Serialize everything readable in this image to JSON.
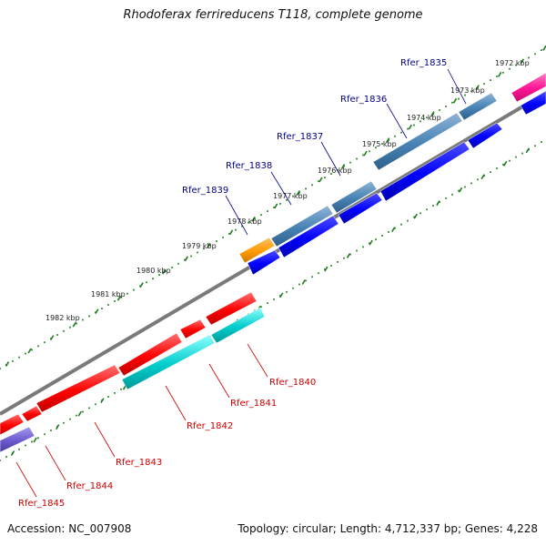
{
  "title": "Rhodoferax ferrireducens T118, complete genome",
  "footer": {
    "accession": "Accession: NC_007908",
    "topology": "Topology: circular; Length: 4,712,337 bp; Genes: 4,228"
  },
  "colors": {
    "background": "#ffffff",
    "backbone": "#7a7a7a",
    "tick_dots": "#2e8b2e",
    "label_forward": "#00008b",
    "label_reverse": "#cc0000",
    "gene_steelblue": "#4682b4",
    "gene_blue": "#0000ff",
    "gene_orange": "#ff9900",
    "gene_pink": "#ff1493",
    "gene_red": "#ff0000",
    "gene_cyan": "#00cccc",
    "gene_slate": "#6a5acd"
  },
  "kbp_labels": [
    {
      "text": "1972 kbp",
      "kbp": 1972
    },
    {
      "text": "1973 kbp",
      "kbp": 1973
    },
    {
      "text": "1974 kbp",
      "kbp": 1974
    },
    {
      "text": "1975 kbp",
      "kbp": 1975
    },
    {
      "text": "1976 kbp",
      "kbp": 1976
    },
    {
      "text": "1977 kbp",
      "kbp": 1977
    },
    {
      "text": "1978 kbp",
      "kbp": 1978
    },
    {
      "text": "1979 kbp",
      "kbp": 1979
    },
    {
      "text": "1980 kbp",
      "kbp": 1980
    },
    {
      "text": "1981 kbp",
      "kbp": 1981
    },
    {
      "text": "1982 kbp",
      "kbp": 1982
    }
  ],
  "gene_labels_top": [
    {
      "text": "Rfer_1835"
    },
    {
      "text": "Rfer_1836"
    },
    {
      "text": "Rfer_1837"
    },
    {
      "text": "Rfer_1838"
    },
    {
      "text": "Rfer_1839"
    }
  ],
  "gene_labels_bottom": [
    {
      "text": "Rfer_1840"
    },
    {
      "text": "Rfer_1841"
    },
    {
      "text": "Rfer_1842"
    },
    {
      "text": "Rfer_1843"
    },
    {
      "text": "Rfer_1844"
    },
    {
      "text": "Rfer_1845"
    }
  ]
}
